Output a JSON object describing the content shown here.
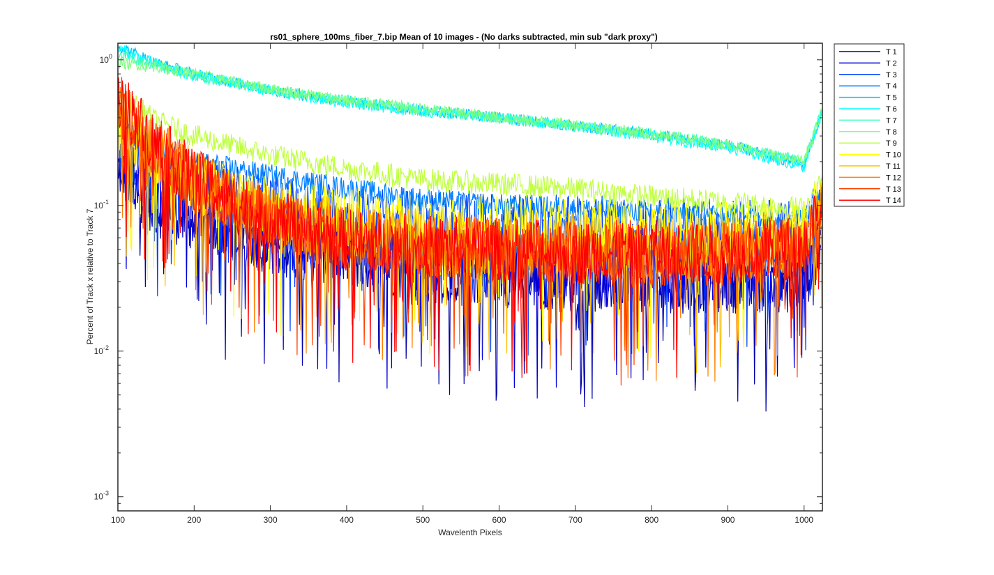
{
  "chart_data": {
    "type": "line",
    "title": "rs01_sphere_100ms_fiber_7.bip  Mean of 10 images - (No darks subtracted, min sub \"dark proxy\")",
    "xlabel": "Wavelenth Pixels",
    "ylabel": "Percent of Track x relative to Track 7",
    "xlim": [
      100,
      1024
    ],
    "ylim": [
      0.0008,
      1.3
    ],
    "yscale": "log",
    "grid": false,
    "legend_position": "outside-right",
    "x_ticks": [
      100,
      200,
      300,
      400,
      500,
      600,
      700,
      800,
      900,
      1000
    ],
    "x_tick_labels": [
      "100",
      "200",
      "300",
      "400",
      "500",
      "600",
      "700",
      "800",
      "900",
      "1000"
    ],
    "y_ticks": [
      0.001,
      0.01,
      0.1,
      1
    ],
    "y_tick_labels": [
      {
        "base": "10",
        "exp": "-3"
      },
      {
        "base": "10",
        "exp": "-2"
      },
      {
        "base": "10",
        "exp": "-1"
      },
      {
        "base": "10",
        "exp": "0"
      }
    ],
    "series": [
      {
        "name": "T 1",
        "color": "#0000ab",
        "x": [
          100,
          150,
          200,
          300,
          400,
          500,
          600,
          700,
          800,
          900,
          1000,
          1024
        ],
        "y": [
          0.18,
          0.1,
          0.08,
          0.055,
          0.045,
          0.035,
          0.033,
          0.03,
          0.03,
          0.03,
          0.03,
          0.06
        ]
      },
      {
        "name": "T 2",
        "color": "#0000d9",
        "x": [
          100,
          150,
          200,
          300,
          400,
          500,
          600,
          700,
          800,
          900,
          1000,
          1024
        ],
        "y": [
          0.2,
          0.11,
          0.085,
          0.058,
          0.047,
          0.037,
          0.035,
          0.032,
          0.032,
          0.031,
          0.032,
          0.065
        ]
      },
      {
        "name": "T 3",
        "color": "#0040ff",
        "x": [
          100,
          150,
          200,
          300,
          400,
          500,
          600,
          700,
          800,
          900,
          1000,
          1024
        ],
        "y": [
          0.25,
          0.16,
          0.14,
          0.1,
          0.085,
          0.078,
          0.075,
          0.072,
          0.07,
          0.068,
          0.065,
          0.1
        ]
      },
      {
        "name": "T 4",
        "color": "#0080ff",
        "x": [
          100,
          150,
          200,
          300,
          400,
          500,
          600,
          700,
          800,
          900,
          1000,
          1024
        ],
        "y": [
          0.35,
          0.24,
          0.2,
          0.16,
          0.13,
          0.11,
          0.1,
          0.095,
          0.09,
          0.087,
          0.085,
          0.14
        ]
      },
      {
        "name": "T 5",
        "color": "#00c0ff",
        "x": [
          100,
          150,
          200,
          300,
          400,
          500,
          600,
          700,
          800,
          900,
          1000,
          1024
        ],
        "y": [
          1.25,
          0.95,
          0.8,
          0.62,
          0.52,
          0.45,
          0.4,
          0.35,
          0.31,
          0.26,
          0.19,
          0.45
        ]
      },
      {
        "name": "T 6",
        "color": "#00ffff",
        "x": [
          100,
          150,
          200,
          300,
          400,
          500,
          600,
          700,
          800,
          900,
          1000,
          1024
        ],
        "y": [
          1.2,
          0.93,
          0.78,
          0.61,
          0.51,
          0.44,
          0.4,
          0.35,
          0.3,
          0.25,
          0.185,
          0.44
        ]
      },
      {
        "name": "T 7",
        "color": "#40ffbf",
        "x": [
          100,
          150,
          200,
          300,
          400,
          500,
          600,
          700,
          800,
          900,
          1000,
          1024
        ],
        "y": [
          1.1,
          0.92,
          0.78,
          0.62,
          0.52,
          0.45,
          0.4,
          0.35,
          0.31,
          0.26,
          0.2,
          0.46
        ]
      },
      {
        "name": "T 8",
        "color": "#80ff80",
        "x": [
          100,
          150,
          200,
          300,
          400,
          500,
          600,
          700,
          800,
          900,
          1000,
          1024
        ],
        "y": [
          0.95,
          0.9,
          0.8,
          0.63,
          0.53,
          0.46,
          0.4,
          0.36,
          0.31,
          0.26,
          0.2,
          0.45
        ]
      },
      {
        "name": "T 9",
        "color": "#bfff40",
        "x": [
          100,
          150,
          200,
          300,
          400,
          500,
          600,
          700,
          800,
          900,
          1000,
          1024
        ],
        "y": [
          0.6,
          0.38,
          0.3,
          0.22,
          0.18,
          0.15,
          0.14,
          0.13,
          0.115,
          0.105,
          0.095,
          0.15
        ]
      },
      {
        "name": "T 10",
        "color": "#ffff00",
        "x": [
          100,
          150,
          200,
          300,
          400,
          500,
          600,
          700,
          800,
          900,
          1000,
          1024
        ],
        "y": [
          0.35,
          0.2,
          0.14,
          0.095,
          0.08,
          0.075,
          0.07,
          0.066,
          0.065,
          0.064,
          0.065,
          0.11
        ]
      },
      {
        "name": "T 11",
        "color": "#ffbf00",
        "x": [
          100,
          150,
          200,
          300,
          400,
          500,
          600,
          700,
          800,
          900,
          1000,
          1024
        ],
        "y": [
          0.4,
          0.22,
          0.15,
          0.085,
          0.065,
          0.058,
          0.055,
          0.055,
          0.052,
          0.052,
          0.055,
          0.09
        ]
      },
      {
        "name": "T 12",
        "color": "#ff8000",
        "x": [
          100,
          150,
          200,
          300,
          400,
          500,
          600,
          700,
          800,
          900,
          1000,
          1024
        ],
        "y": [
          0.45,
          0.24,
          0.15,
          0.08,
          0.06,
          0.052,
          0.05,
          0.048,
          0.047,
          0.047,
          0.05,
          0.085
        ]
      },
      {
        "name": "T 13",
        "color": "#ff4000",
        "x": [
          100,
          150,
          200,
          300,
          400,
          500,
          600,
          700,
          800,
          900,
          1000,
          1024
        ],
        "y": [
          0.5,
          0.25,
          0.15,
          0.078,
          0.058,
          0.05,
          0.048,
          0.046,
          0.045,
          0.046,
          0.05,
          0.09
        ]
      },
      {
        "name": "T 14",
        "color": "#ff0000",
        "x": [
          100,
          150,
          200,
          300,
          400,
          500,
          600,
          700,
          800,
          900,
          1000,
          1024
        ],
        "y": [
          0.55,
          0.26,
          0.15,
          0.078,
          0.058,
          0.052,
          0.05,
          0.048,
          0.048,
          0.048,
          0.052,
          0.1
        ]
      }
    ]
  }
}
